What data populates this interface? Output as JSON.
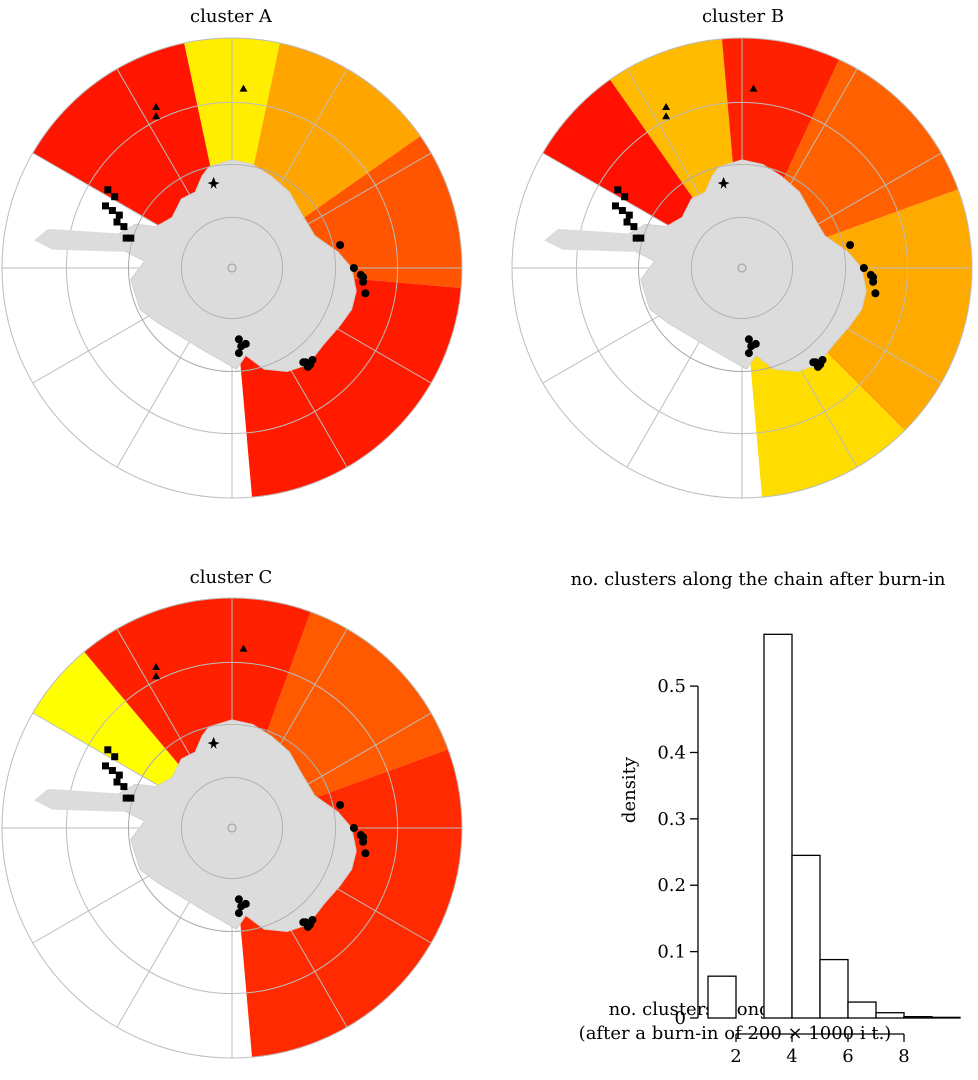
{
  "figure": {
    "panels": [
      {
        "title": "cluster A"
      },
      {
        "title": "cluster B"
      },
      {
        "title": "cluster C"
      }
    ]
  },
  "chart_data": [
    {
      "type": "map",
      "title": "cluster A",
      "projection": "south polar stereographic",
      "color_scale": [
        "#ffff00",
        "#ff0000"
      ],
      "sectors_clockwise_from_top": [
        {
          "from_deg": -60,
          "to_deg": -12,
          "color": "#ff1500"
        },
        {
          "from_deg": -12,
          "to_deg": 12,
          "color": "#ffee00"
        },
        {
          "from_deg": 12,
          "to_deg": 55,
          "color": "#ffa500"
        },
        {
          "from_deg": 55,
          "to_deg": 95,
          "color": "#ff5500"
        },
        {
          "from_deg": 95,
          "to_deg": 175,
          "color": "#ff1a00"
        }
      ],
      "markers": [
        "triangle",
        "square",
        "circle",
        "star"
      ]
    },
    {
      "type": "map",
      "title": "cluster B",
      "projection": "south polar stereographic",
      "color_scale": [
        "#ffff00",
        "#ff0000"
      ],
      "sectors_clockwise_from_top": [
        {
          "from_deg": -60,
          "to_deg": -35,
          "color": "#ff1000"
        },
        {
          "from_deg": -35,
          "to_deg": -5,
          "color": "#ffbb00"
        },
        {
          "from_deg": -5,
          "to_deg": 25,
          "color": "#ff2000"
        },
        {
          "from_deg": 25,
          "to_deg": 70,
          "color": "#ff6000"
        },
        {
          "from_deg": 70,
          "to_deg": 135,
          "color": "#ffaa00"
        },
        {
          "from_deg": 135,
          "to_deg": 175,
          "color": "#ffdd00"
        }
      ],
      "markers": [
        "triangle",
        "square",
        "circle",
        "star"
      ]
    },
    {
      "type": "map",
      "title": "cluster C",
      "projection": "south polar stereographic",
      "color_scale": [
        "#ffff00",
        "#ff0000"
      ],
      "sectors_clockwise_from_top": [
        {
          "from_deg": -60,
          "to_deg": -40,
          "color": "#ffff00"
        },
        {
          "from_deg": -40,
          "to_deg": 20,
          "color": "#ff2000"
        },
        {
          "from_deg": 20,
          "to_deg": 70,
          "color": "#ff5a00"
        },
        {
          "from_deg": 70,
          "to_deg": 175,
          "color": "#ff2a00"
        }
      ],
      "markers": [
        "triangle",
        "square",
        "circle",
        "star"
      ]
    },
    {
      "type": "bar",
      "title": "no. clusters along the chain after burn-in",
      "xlabel": "no. clusters along the chain",
      "xlabel_line2": "(after a burn-in of 200 × 1000 i t.)",
      "ylabel": "density",
      "x_ticks": [
        2,
        4,
        6,
        8
      ],
      "y_ticks": [
        0,
        0.1,
        0.2,
        0.3,
        0.4,
        0.5
      ],
      "ylim": [
        0,
        0.58
      ],
      "bins": [
        {
          "from": 1,
          "to": 2,
          "value": 0.063
        },
        {
          "from": 2,
          "to": 3,
          "value": 0.0
        },
        {
          "from": 3,
          "to": 4,
          "value": 0.578
        },
        {
          "from": 4,
          "to": 5,
          "value": 0.245
        },
        {
          "from": 5,
          "to": 6,
          "value": 0.088
        },
        {
          "from": 6,
          "to": 7,
          "value": 0.024
        },
        {
          "from": 7,
          "to": 8,
          "value": 0.008
        },
        {
          "from": 8,
          "to": 9,
          "value": 0.002
        },
        {
          "from": 9,
          "to": 10,
          "value": 0.001
        }
      ]
    }
  ]
}
